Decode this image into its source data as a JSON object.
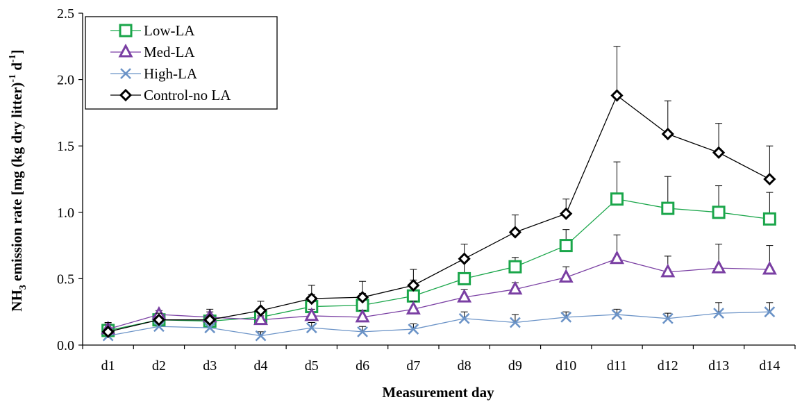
{
  "chart_data": {
    "type": "line",
    "title": "",
    "xlabel": "Measurement day",
    "ylabel": {
      "prefix": "NH",
      "subscript": "3",
      "main": "  emission rate [mg (kg dry litter)",
      "sup1": "-1",
      "mid": " d",
      "sup2": "-1",
      "suffix": "]"
    },
    "ylim": [
      0,
      2.5
    ],
    "yticks": [
      "0.0",
      "0.5",
      "1.0",
      "1.5",
      "2.0",
      "2.5"
    ],
    "categories": [
      "d1",
      "d2",
      "d3",
      "d4",
      "d5",
      "d6",
      "d7",
      "d8",
      "d9",
      "d10",
      "d11",
      "d12",
      "d13",
      "d14"
    ],
    "grid": false,
    "legend_position": "top-left",
    "series": [
      {
        "name": "Low-LA",
        "color": "#1aa64a",
        "marker": "square",
        "values": [
          0.11,
          0.19,
          0.18,
          0.21,
          0.29,
          0.3,
          0.37,
          0.5,
          0.59,
          0.75,
          1.1,
          1.03,
          1.0,
          0.95
        ],
        "errors": [
          0.04,
          0.03,
          0.05,
          0.03,
          0.09,
          0.09,
          0.12,
          0.13,
          0.07,
          0.12,
          0.28,
          0.24,
          0.2,
          0.2
        ]
      },
      {
        "name": "Med-LA",
        "color": "#7a3fa3",
        "marker": "triangle",
        "values": [
          0.12,
          0.23,
          0.21,
          0.19,
          0.22,
          0.21,
          0.27,
          0.36,
          0.42,
          0.51,
          0.65,
          0.55,
          0.58,
          0.57
        ],
        "errors": [
          0.04,
          0.03,
          0.04,
          0.03,
          0.05,
          0.05,
          0.06,
          0.06,
          0.05,
          0.08,
          0.18,
          0.12,
          0.18,
          0.18
        ]
      },
      {
        "name": "High-LA",
        "color": "#6b93c7",
        "marker": "x",
        "values": [
          0.07,
          0.14,
          0.13,
          0.07,
          0.13,
          0.1,
          0.12,
          0.2,
          0.17,
          0.21,
          0.23,
          0.2,
          0.24,
          0.25
        ],
        "errors": [
          0.02,
          0.03,
          0.03,
          0.03,
          0.04,
          0.04,
          0.04,
          0.05,
          0.06,
          0.04,
          0.04,
          0.04,
          0.08,
          0.07
        ]
      },
      {
        "name": "Control-no LA",
        "color": "#000000",
        "marker": "diamond",
        "values": [
          0.1,
          0.19,
          0.19,
          0.26,
          0.35,
          0.36,
          0.45,
          0.65,
          0.85,
          0.99,
          1.88,
          1.59,
          1.45,
          1.25
        ],
        "errors": [
          0.07,
          0.05,
          0.08,
          0.07,
          0.1,
          0.12,
          0.12,
          0.11,
          0.13,
          0.11,
          0.37,
          0.25,
          0.22,
          0.25
        ]
      }
    ]
  }
}
